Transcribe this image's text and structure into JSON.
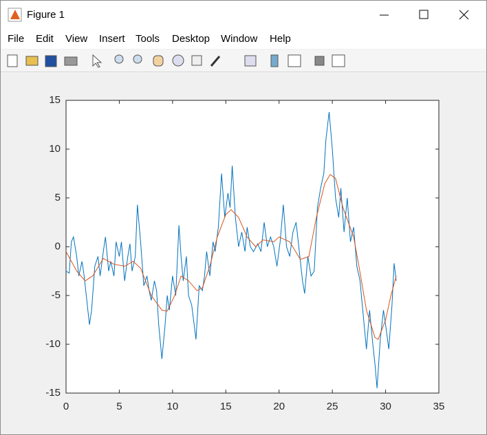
{
  "window": {
    "title": "Figure 1",
    "menu": [
      "File",
      "Edit",
      "View",
      "Insert",
      "Tools",
      "Desktop",
      "Window",
      "Help"
    ]
  },
  "chart_data": {
    "type": "line",
    "xlim": [
      0,
      35
    ],
    "xticks": [
      0,
      5,
      10,
      15,
      20,
      25,
      30,
      35
    ],
    "ylim": [
      -15,
      15
    ],
    "yticks": [
      -15,
      -10,
      -5,
      0,
      5,
      10,
      15
    ],
    "series": [
      {
        "color": "#0072bd",
        "x": [
          0,
          0.3,
          0.5,
          0.7,
          1.0,
          1.2,
          1.5,
          1.7,
          2.0,
          2.2,
          2.4,
          2.7,
          3.0,
          3.2,
          3.5,
          3.7,
          4.0,
          4.2,
          4.5,
          4.7,
          5.0,
          5.2,
          5.5,
          5.8,
          6.0,
          6.2,
          6.5,
          6.7,
          7.0,
          7.3,
          7.6,
          7.8,
          8.0,
          8.3,
          8.5,
          8.7,
          9.0,
          9.3,
          9.5,
          9.7,
          10.0,
          10.3,
          10.6,
          10.8,
          11.0,
          11.3,
          11.5,
          11.8,
          12.2,
          12.5,
          12.8,
          13.0,
          13.2,
          13.5,
          13.8,
          14.0,
          14.3,
          14.6,
          14.9,
          15.2,
          15.4,
          15.6,
          15.9,
          16.2,
          16.5,
          16.8,
          17.0,
          17.3,
          17.6,
          18.0,
          18.3,
          18.6,
          18.9,
          19.2,
          19.5,
          19.8,
          20.1,
          20.4,
          20.7,
          21.0,
          21.3,
          21.6,
          21.9,
          22.2,
          22.4,
          22.7,
          23.0,
          23.3,
          23.6,
          23.9,
          24.2,
          24.4,
          24.7,
          25.0,
          25.3,
          25.6,
          25.8,
          26.1,
          26.4,
          26.7,
          27.0,
          27.3,
          27.6,
          27.9,
          28.2,
          28.5,
          28.8,
          29.0,
          29.2,
          29.5,
          29.8,
          30.0,
          30.3,
          30.6,
          30.8,
          31.0
        ],
        "values": [
          -2.5,
          -2.7,
          0.5,
          1.0,
          -1,
          -3,
          -1.5,
          -3,
          -6,
          -8,
          -6.5,
          -2,
          -1,
          -3,
          -0.5,
          1,
          -2.5,
          -1.5,
          -3,
          0.5,
          -1,
          0.5,
          -3.5,
          -1,
          0.3,
          -2.5,
          -1,
          4.3,
          0.5,
          -4,
          -3,
          -4.5,
          -5.5,
          -3.5,
          -4.5,
          -8,
          -11.5,
          -8,
          -5,
          -6.5,
          -3,
          -5,
          2.2,
          -1,
          -3.5,
          -1,
          -5,
          -6,
          -9.5,
          -4,
          -4.5,
          -3,
          -0.5,
          -3,
          0.5,
          -0.5,
          2,
          7.5,
          3,
          5.5,
          4,
          8.3,
          3,
          0,
          1.5,
          -0.5,
          2,
          0,
          -0.5,
          0.3,
          -0.5,
          2.5,
          0,
          1,
          0,
          -2,
          0.5,
          4.3,
          0,
          -1,
          1.5,
          2.5,
          -0.5,
          -3.5,
          -4.8,
          -1,
          -3,
          -2.5,
          4,
          6,
          7.5,
          11,
          13.8,
          10,
          5,
          3,
          6,
          1.5,
          5,
          0.5,
          2,
          -2,
          -3.5,
          -7,
          -10.5,
          -6.5,
          -10,
          -12,
          -14.5,
          -9.5,
          -6.5,
          -8,
          -10.5,
          -6,
          -1.7,
          -3.5
        ]
      },
      {
        "color": "#d95319",
        "x": [
          0,
          1,
          1.8,
          2.5,
          3.5,
          4.5,
          5.5,
          6.3,
          7,
          8,
          9,
          9.5,
          10.2,
          10.8,
          11.5,
          12.3,
          12.8,
          13.5,
          14.2,
          15,
          15.5,
          16.2,
          17,
          17.8,
          18.5,
          19.5,
          20,
          21,
          22,
          22.8,
          23.5,
          24.3,
          24.8,
          25.3,
          26,
          27,
          27.5,
          28.2,
          29,
          29.3,
          30,
          30.5,
          31
        ],
        "values": [
          -0.5,
          -2.5,
          -3.5,
          -3,
          -1.2,
          -1.8,
          -2,
          -1.5,
          -2.2,
          -5,
          -6.5,
          -6.6,
          -5,
          -3,
          -3.5,
          -4.5,
          -4.2,
          -2,
          1,
          3.3,
          3.8,
          3,
          1,
          0,
          0.7,
          0.5,
          1,
          0.5,
          -1.3,
          -1,
          3,
          6.5,
          7.4,
          7,
          4,
          1,
          -2,
          -6.5,
          -9.3,
          -9.5,
          -7.5,
          -5,
          -3
        ]
      }
    ]
  }
}
